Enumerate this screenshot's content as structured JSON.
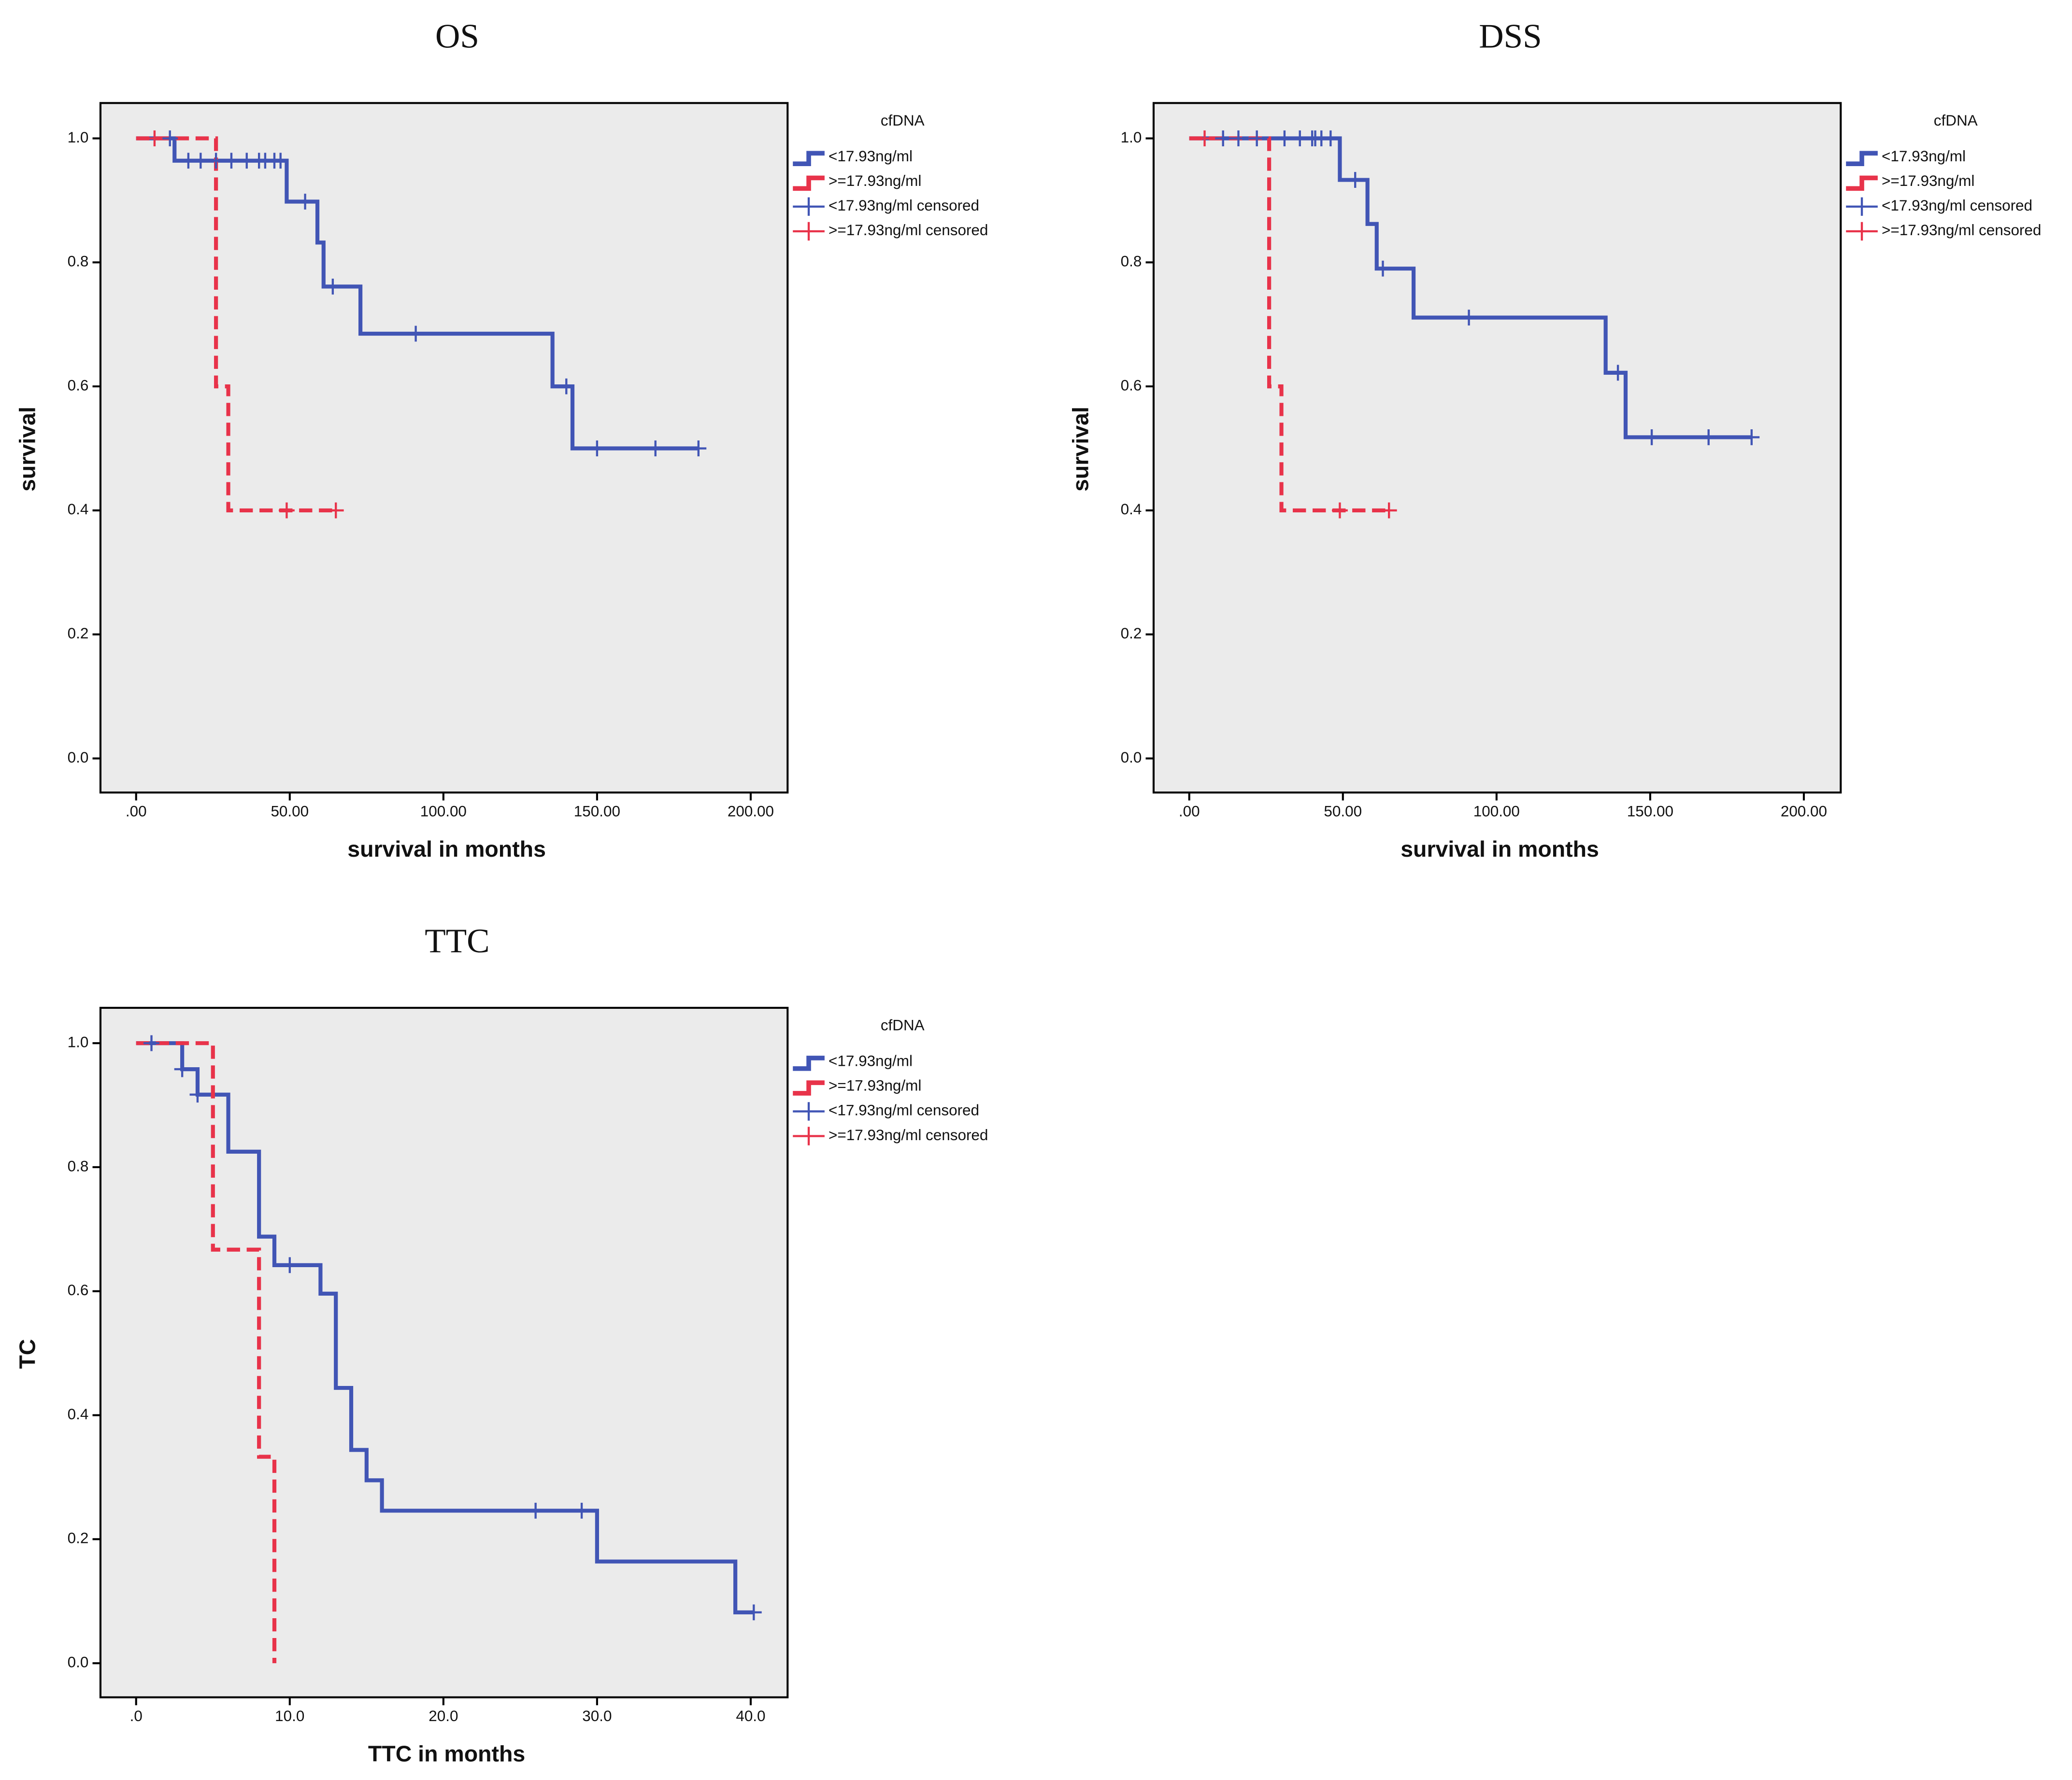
{
  "chart_data": [
    {
      "type": "line",
      "title": "OS",
      "x_label": "survival in months",
      "y_label": "survival",
      "legend_title": "cfDNA",
      "xlim": [
        -11.6,
        212
      ],
      "ylim": [
        -0.055,
        1.057
      ],
      "xticks": [
        {
          "value": 0,
          "label": ".00"
        },
        {
          "value": 50,
          "label": "50.00"
        },
        {
          "value": 100,
          "label": "100.00"
        },
        {
          "value": 150,
          "label": "150.00"
        },
        {
          "value": 200,
          "label": "200.00"
        }
      ],
      "yticks": [
        {
          "value": 0,
          "label": "0.0"
        },
        {
          "value": 0.2,
          "label": "0.2"
        },
        {
          "value": 0.4,
          "label": "0.4"
        },
        {
          "value": 0.6,
          "label": "0.6"
        },
        {
          "value": 0.8,
          "label": "0.8"
        },
        {
          "value": 1,
          "label": "1.0"
        }
      ],
      "series": [
        {
          "name": "<17.93ng/ml",
          "color": "#4155b5",
          "kind": "step",
          "dashed": false,
          "x": [
            0,
            12.5,
            49,
            59,
            61,
            73,
            135.5,
            142,
            183
          ],
          "values": [
            1,
            0.964,
            0.898,
            0.832,
            0.761,
            0.685,
            0.6,
            0.5,
            0.5
          ]
        },
        {
          "name": ">=17.93ng/ml",
          "color": "#e8334a",
          "kind": "step",
          "dashed": true,
          "x": [
            0,
            26,
            30,
            65
          ],
          "values": [
            1,
            0.6,
            0.4,
            0.4
          ]
        },
        {
          "name": "<17.93ng/ml censored",
          "color": "#4155b5",
          "kind": "censored",
          "x": [
            11,
            17,
            21,
            26,
            31,
            36,
            40,
            42,
            45,
            47,
            55,
            64,
            91,
            140,
            150,
            169,
            183
          ],
          "values": [
            1,
            0.964,
            0.964,
            0.964,
            0.964,
            0.964,
            0.964,
            0.964,
            0.964,
            0.964,
            0.898,
            0.761,
            0.685,
            0.6,
            0.5,
            0.5,
            0.5
          ]
        },
        {
          "name": ">=17.93ng/ml censored",
          "color": "#e8334a",
          "kind": "censored",
          "x": [
            6,
            49,
            65
          ],
          "values": [
            1,
            0.4,
            0.4
          ]
        }
      ]
    },
    {
      "type": "line",
      "title": "DSS",
      "x_label": "survival in months",
      "y_label": "survival",
      "legend_title": "cfDNA",
      "xlim": [
        -11.6,
        212
      ],
      "ylim": [
        -0.055,
        1.057
      ],
      "xticks": [
        {
          "value": 0,
          "label": ".00"
        },
        {
          "value": 50,
          "label": "50.00"
        },
        {
          "value": 100,
          "label": "100.00"
        },
        {
          "value": 150,
          "label": "150.00"
        },
        {
          "value": 200,
          "label": "200.00"
        }
      ],
      "yticks": [
        {
          "value": 0,
          "label": "0.0"
        },
        {
          "value": 0.2,
          "label": "0.2"
        },
        {
          "value": 0.4,
          "label": "0.4"
        },
        {
          "value": 0.6,
          "label": "0.6"
        },
        {
          "value": 0.8,
          "label": "0.8"
        },
        {
          "value": 1,
          "label": "1.0"
        }
      ],
      "series": [
        {
          "name": "<17.93ng/ml",
          "color": "#4155b5",
          "kind": "step",
          "dashed": false,
          "x": [
            0,
            49,
            58,
            61,
            73,
            135.5,
            142,
            183
          ],
          "values": [
            1,
            0.933,
            0.862,
            0.79,
            0.711,
            0.622,
            0.518,
            0.518
          ]
        },
        {
          "name": ">=17.93ng/ml",
          "color": "#e8334a",
          "kind": "step",
          "dashed": true,
          "x": [
            0,
            26,
            30,
            65
          ],
          "values": [
            1,
            0.6,
            0.4,
            0.4
          ]
        },
        {
          "name": "<17.93ng/ml censored",
          "color": "#4155b5",
          "kind": "censored",
          "x": [
            11,
            16,
            22,
            31,
            36,
            40,
            41,
            43,
            46,
            54,
            63,
            91,
            139.5,
            150.5,
            169,
            183
          ],
          "values": [
            1,
            1,
            1,
            1,
            1,
            1,
            1,
            1,
            1,
            0.933,
            0.79,
            0.711,
            0.622,
            0.518,
            0.518,
            0.518
          ]
        },
        {
          "name": ">=17.93ng/ml censored",
          "color": "#e8334a",
          "kind": "censored",
          "x": [
            5,
            49,
            65
          ],
          "values": [
            1,
            0.4,
            0.4
          ]
        }
      ]
    },
    {
      "type": "line",
      "title": "TTC",
      "x_label": "TTC in months",
      "y_label": "TC",
      "legend_title": "cfDNA",
      "xlim": [
        -2.32,
        42.4
      ],
      "ylim": [
        -0.055,
        1.057
      ],
      "xticks": [
        {
          "value": 0,
          "label": ".0"
        },
        {
          "value": 10,
          "label": "10.0"
        },
        {
          "value": 20,
          "label": "20.0"
        },
        {
          "value": 30,
          "label": "30.0"
        },
        {
          "value": 40,
          "label": "40.0"
        }
      ],
      "yticks": [
        {
          "value": 0,
          "label": "0.0"
        },
        {
          "value": 0.2,
          "label": "0.2"
        },
        {
          "value": 0.4,
          "label": "0.4"
        },
        {
          "value": 0.6,
          "label": "0.6"
        },
        {
          "value": 0.8,
          "label": "0.8"
        },
        {
          "value": 1,
          "label": "1.0"
        }
      ],
      "series": [
        {
          "name": "<17.93ng/ml",
          "color": "#4155b5",
          "kind": "step",
          "dashed": false,
          "x": [
            0,
            3,
            4,
            6,
            8,
            9,
            12,
            13,
            14,
            15,
            16,
            30,
            39,
            40.2
          ],
          "values": [
            1,
            0.958,
            0.917,
            0.825,
            0.688,
            0.642,
            0.596,
            0.444,
            0.344,
            0.295,
            0.246,
            0.164,
            0.082,
            0.082
          ]
        },
        {
          "name": ">=17.93ng/ml",
          "color": "#e8334a",
          "kind": "step",
          "dashed": true,
          "x": [
            0,
            5,
            8,
            9
          ],
          "values": [
            1,
            0.667,
            0.333,
            0
          ]
        },
        {
          "name": "<17.93ng/ml censored",
          "color": "#4155b5",
          "kind": "censored",
          "x": [
            1,
            3,
            4,
            10,
            26,
            29,
            40.2
          ],
          "values": [
            1,
            0.958,
            0.917,
            0.642,
            0.246,
            0.246,
            0.082
          ]
        },
        {
          "name": ">=17.93ng/ml censored",
          "color": "#e8334a",
          "kind": "censored",
          "x": [],
          "values": []
        }
      ]
    }
  ]
}
